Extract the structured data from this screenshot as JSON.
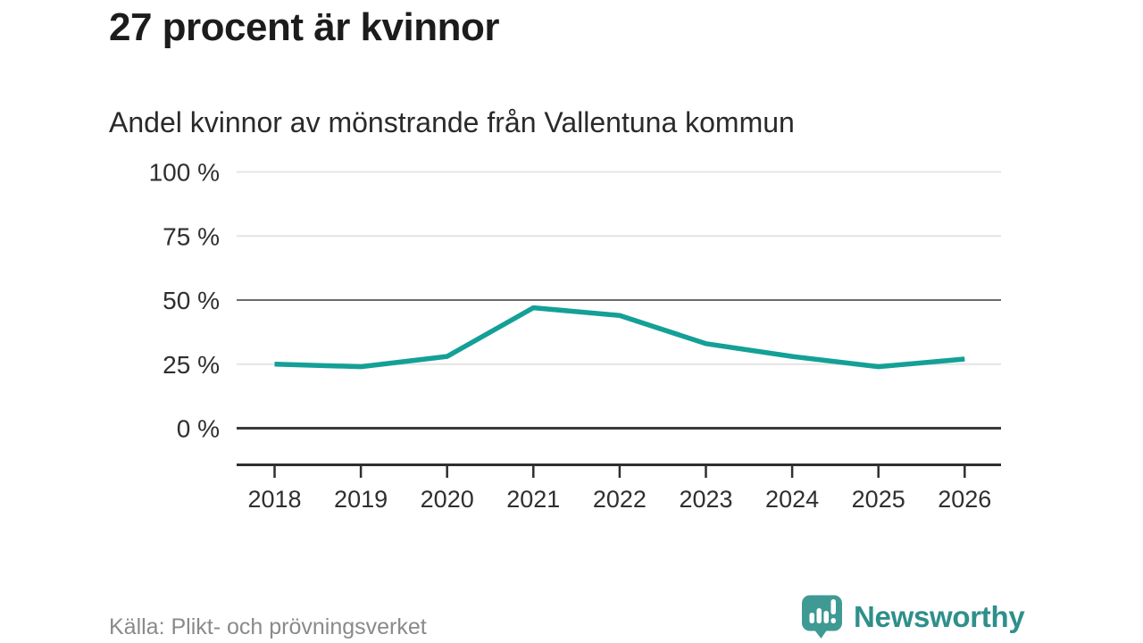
{
  "header": {
    "title": "27 procent är kvinnor",
    "subtitle": "Andel kvinnor av mönstrande från Vallentuna kommun"
  },
  "chart_data": {
    "type": "line",
    "title": "27 procent är kvinnor",
    "subtitle": "Andel kvinnor av mönstrande från Vallentuna kommun",
    "categories": [
      "2018",
      "2019",
      "2020",
      "2021",
      "2022",
      "2023",
      "2024",
      "2025",
      "2026"
    ],
    "series": [
      {
        "name": "Andel kvinnor av mönstrande",
        "values": [
          25,
          24,
          28,
          47,
          44,
          33,
          28,
          24,
          27
        ]
      }
    ],
    "unit": "%",
    "xlabel": "",
    "ylabel": "",
    "ylim": [
      0,
      100
    ],
    "y_ticks": [
      0,
      25,
      50,
      75,
      100
    ],
    "y_tick_labels": [
      "0 %",
      "25 %",
      "50 %",
      "75 %",
      "100 %"
    ],
    "grid": true,
    "legend": false,
    "line_color": "#14a096"
  },
  "footer": {
    "source": "Källa: Plikt- och prövningsverket",
    "brand": "Newsworthy"
  },
  "icons": {
    "logo": "newsworthy-speech-bubble-barchart-icon"
  },
  "colors": {
    "accent": "#14a096",
    "logo": "#3f9a93",
    "logo_text": "#2f8f8b",
    "grid_light": "#e4e4e4",
    "grid_mid": "#6b6b6b",
    "zero_line": "#3a3a3a",
    "axis": "#2f2f2f",
    "text_dark": "#1c1c1c",
    "text_sub": "#2a2a2a",
    "text_muted": "#8a8a8a"
  }
}
